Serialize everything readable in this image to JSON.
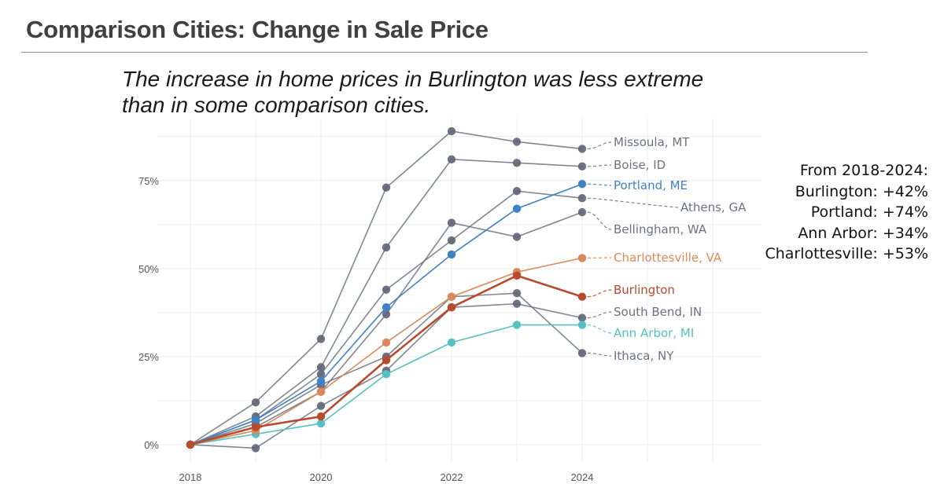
{
  "slide": {
    "title": "Comparison Cities: Change in Sale Price",
    "subtitle_lines": [
      "The increase in home prices in Burlington was less extreme",
      "than in some comparison cities."
    ]
  },
  "summary": {
    "heading": "From 2018-2024:",
    "lines": [
      "Burlington: +42%",
      "Portland: +74%",
      "Ann Arbor: +34%",
      "Charlottesville: +53%"
    ]
  },
  "colors": {
    "gray_series": "#6b7180",
    "gray_marker": "#5e6474",
    "portland": "#3f82c6",
    "charlottesville": "#d9895a",
    "burlington": "#b84a2e",
    "ann_arbor": "#56c0c2",
    "grid": "#ececec",
    "label_gray": "#6d7280"
  },
  "chart_data": {
    "type": "line",
    "title": "",
    "xlabel": "",
    "ylabel": "",
    "x": [
      2018,
      2019,
      2020,
      2021,
      2022,
      2023,
      2024
    ],
    "x_ticks": [
      2018,
      2020,
      2022,
      2024
    ],
    "x_tick_labels": [
      "2018",
      "2020",
      "2022",
      "2024"
    ],
    "xlim": [
      2018,
      2026.8
    ],
    "ylim": [
      -2,
      88
    ],
    "y_ticks": [
      0,
      25,
      50,
      75
    ],
    "y_tick_labels": [
      "0%",
      "25%",
      "50%",
      "75%"
    ],
    "grid": true,
    "legend": "direct labels at right end of each line",
    "series": [
      {
        "name": "Missoula, MT",
        "color": "gray",
        "values": [
          0,
          12,
          30,
          73,
          89,
          86,
          84
        ]
      },
      {
        "name": "Boise, ID",
        "color": "gray",
        "values": [
          0,
          8,
          22,
          56,
          81,
          80,
          79
        ]
      },
      {
        "name": "Athens, GA",
        "color": "gray",
        "values": [
          0,
          7,
          20,
          44,
          58,
          72,
          70
        ]
      },
      {
        "name": "Bellingham, WA",
        "color": "gray",
        "values": [
          0,
          5,
          15,
          37,
          63,
          59,
          66
        ]
      },
      {
        "name": "South Bend, IN",
        "color": "gray",
        "values": [
          0,
          -1,
          11,
          21,
          39,
          40,
          36
        ]
      },
      {
        "name": "Ithaca, NY",
        "color": "gray",
        "values": [
          0,
          6,
          17,
          25,
          42,
          43,
          26
        ]
      },
      {
        "name": "Ann Arbor, MI",
        "color": "ann_arbor",
        "values": [
          0,
          3,
          6,
          20,
          29,
          34,
          34
        ]
      },
      {
        "name": "Charlottesville, VA",
        "color": "charlottesville",
        "values": [
          0,
          4,
          15,
          29,
          42,
          49,
          53
        ]
      },
      {
        "name": "Portland, ME",
        "color": "portland",
        "values": [
          0,
          7,
          18,
          39,
          54,
          67,
          74
        ]
      },
      {
        "name": "Burlington",
        "color": "burlington",
        "values": [
          0,
          5,
          8,
          24,
          39,
          48,
          42
        ]
      }
    ]
  }
}
